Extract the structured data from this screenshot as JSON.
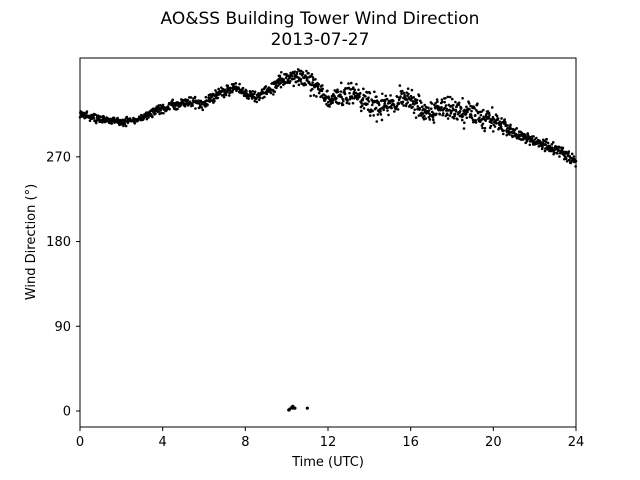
{
  "chart_data": {
    "type": "scatter",
    "title": "AO&SS Building Tower Wind Direction",
    "subtitle": "2013-07-27",
    "xlabel": "Time (UTC)",
    "ylabel": "Wind Direction (°)",
    "xlim": [
      0,
      24
    ],
    "ylim": [
      -17,
      375
    ],
    "xticks": [
      0,
      4,
      8,
      12,
      16,
      20,
      24
    ],
    "yticks": [
      0,
      90,
      180,
      270
    ],
    "grid": false,
    "marker_color": "#000000",
    "trend": [
      [
        0.0,
        315
      ],
      [
        0.5,
        312
      ],
      [
        1.0,
        310
      ],
      [
        1.5,
        309
      ],
      [
        2.0,
        307
      ],
      [
        2.5,
        309
      ],
      [
        3.0,
        311
      ],
      [
        3.5,
        318
      ],
      [
        4.0,
        322
      ],
      [
        4.5,
        324
      ],
      [
        5.0,
        327
      ],
      [
        5.5,
        328
      ],
      [
        6.0,
        327
      ],
      [
        6.5,
        335
      ],
      [
        7.0,
        340
      ],
      [
        7.5,
        344
      ],
      [
        8.0,
        338
      ],
      [
        8.5,
        333
      ],
      [
        9.0,
        340
      ],
      [
        9.5,
        348
      ],
      [
        10.0,
        353
      ],
      [
        10.5,
        355
      ],
      [
        11.0,
        350
      ],
      [
        11.5,
        344
      ],
      [
        12.0,
        330
      ],
      [
        12.5,
        335
      ],
      [
        13.0,
        338
      ],
      [
        13.5,
        333
      ],
      [
        14.0,
        328
      ],
      [
        14.5,
        323
      ],
      [
        15.0,
        325
      ],
      [
        15.5,
        330
      ],
      [
        16.0,
        328
      ],
      [
        16.5,
        322
      ],
      [
        17.0,
        318
      ],
      [
        17.5,
        322
      ],
      [
        18.0,
        320
      ],
      [
        18.5,
        318
      ],
      [
        19.0,
        316
      ],
      [
        19.5,
        313
      ],
      [
        20.0,
        309
      ],
      [
        20.5,
        303
      ],
      [
        21.0,
        296
      ],
      [
        21.5,
        290
      ],
      [
        22.0,
        286
      ],
      [
        22.5,
        282
      ],
      [
        23.0,
        278
      ],
      [
        23.5,
        272
      ],
      [
        24.0,
        265
      ]
    ],
    "spread": [
      [
        0,
        5
      ],
      [
        3,
        5
      ],
      [
        4,
        7
      ],
      [
        7,
        7
      ],
      [
        8,
        8
      ],
      [
        9,
        8
      ],
      [
        10,
        12
      ],
      [
        11,
        12
      ],
      [
        12,
        14
      ],
      [
        14,
        16
      ],
      [
        16,
        18
      ],
      [
        17,
        16
      ],
      [
        19,
        16
      ],
      [
        20,
        14
      ],
      [
        21,
        10
      ],
      [
        22,
        9
      ],
      [
        23,
        9
      ],
      [
        24,
        9
      ]
    ],
    "outliers": [
      {
        "x": 10.1,
        "y": 1
      },
      {
        "x": 10.15,
        "y": 2
      },
      {
        "x": 10.25,
        "y": 4
      },
      {
        "x": 10.3,
        "y": 3
      },
      {
        "x": 10.3,
        "y": 5
      },
      {
        "x": 10.4,
        "y": 3
      },
      {
        "x": 11.0,
        "y": 3
      }
    ]
  }
}
